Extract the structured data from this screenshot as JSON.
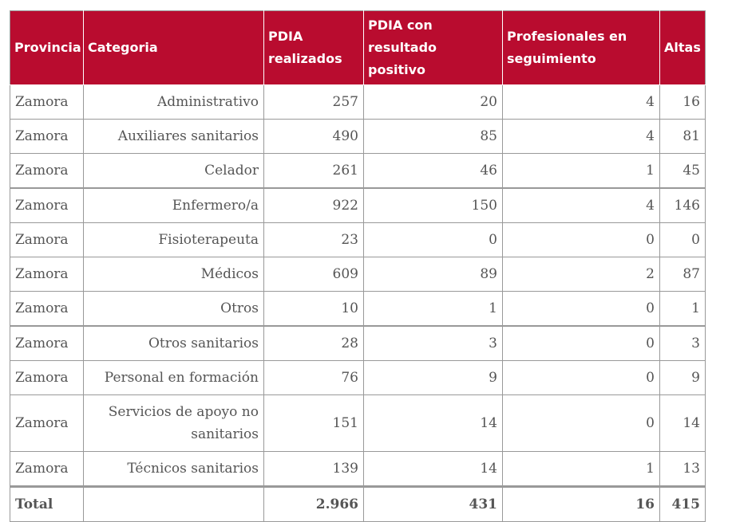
{
  "header_color": "#b90c2f",
  "columns": [
    "Provincia",
    "Categoria",
    "PDIA realizados",
    "PDIA con resultado positivo",
    "Profesionales en seguimiento",
    "Altas"
  ],
  "rows": [
    [
      "Zamora",
      "Administrativo",
      "257",
      "20",
      "4",
      "16"
    ],
    [
      "Zamora",
      "Auxiliares sanitarios",
      "490",
      "85",
      "4",
      "81"
    ],
    [
      "Zamora",
      "Celador",
      "261",
      "46",
      "1",
      "45"
    ],
    [
      "Zamora",
      "Enfermero/a",
      "922",
      "150",
      "4",
      "146"
    ],
    [
      "Zamora",
      "Fisioterapeuta",
      "23",
      "0",
      "0",
      "0"
    ],
    [
      "Zamora",
      "Médicos",
      "609",
      "89",
      "2",
      "87"
    ],
    [
      "Zamora",
      "Otros",
      "10",
      "1",
      "0",
      "1"
    ],
    [
      "Zamora",
      "Otros sanitarios",
      "28",
      "3",
      "0",
      "3"
    ],
    [
      "Zamora",
      "Personal en formación",
      "76",
      "9",
      "0",
      "9"
    ],
    [
      "Zamora",
      "Servicios de apoyo no sanitarios",
      "151",
      "14",
      "0",
      "14"
    ],
    [
      "Zamora",
      "Técnicos sanitarios",
      "139",
      "14",
      "1",
      "13"
    ]
  ],
  "total": [
    "Total",
    "",
    "2.966",
    "431",
    "16",
    "415"
  ]
}
